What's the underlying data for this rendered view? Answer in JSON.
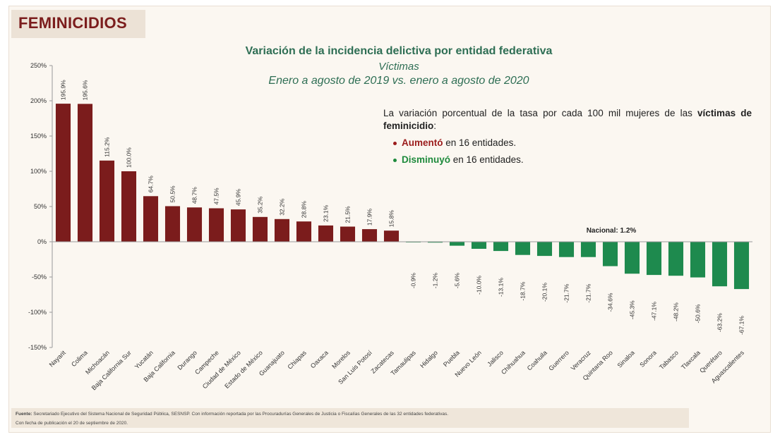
{
  "header": {
    "title": "FEMINICIDIOS"
  },
  "chart_data": {
    "type": "bar",
    "title": "Variación de la incidencia delictiva por entidad federativa",
    "subtitle": "Víctimas",
    "period": "Enero a agosto de 2019 vs. enero a agosto de 2020",
    "ylim": [
      -150,
      250
    ],
    "yticks": [
      250,
      200,
      150,
      100,
      50,
      0,
      -50,
      -100,
      -150
    ],
    "ytick_labels": [
      "250%",
      "200%",
      "150%",
      "100%",
      "50%",
      "0%",
      "-50%",
      "-100%",
      "-150%"
    ],
    "categories": [
      "Nayarit",
      "Colima",
      "Michoacán",
      "Baja California Sur",
      "Yucatán",
      "Baja California",
      "Durango",
      "Campeche",
      "Ciudad de México",
      "Estado de México",
      "Guanajuato",
      "Chiapas",
      "Oaxaca",
      "Morelos",
      "San Luis Potosí",
      "Zacatecas",
      "Tamaulipas",
      "Hidalgo",
      "Puebla",
      "Nuevo León",
      "Jalisco",
      "Chihuahua",
      "Coahuila",
      "Guerrero",
      "Veracruz",
      "Quintana Roo",
      "Sinaloa",
      "Sonora",
      "Tabasco",
      "Tlaxcala",
      "Querétaro",
      "Aguascalientes"
    ],
    "values": [
      195.9,
      195.6,
      115.2,
      100.0,
      64.7,
      50.5,
      48.7,
      47.5,
      45.9,
      35.2,
      32.2,
      28.8,
      23.1,
      21.5,
      17.9,
      15.8,
      -0.9,
      -1.2,
      -5.6,
      -10.0,
      -13.1,
      -18.7,
      -20.1,
      -21.7,
      -21.7,
      -34.6,
      -45.3,
      -47.1,
      -48.2,
      -50.6,
      -63.2,
      -67.1
    ],
    "value_labels": [
      "195.9%",
      "195.6%",
      "115.2%",
      "100.0%",
      "64.7%",
      "50.5%",
      "48.7%",
      "47.5%",
      "45.9%",
      "35.2%",
      "32.2%",
      "28.8%",
      "23.1%",
      "21.5%",
      "17.9%",
      "15.8%",
      "-0.9%",
      "-1.2%",
      "-5.6%",
      "-10.0%",
      "-13.1%",
      "-18.7%",
      "-20.1%",
      "-21.7%",
      "-21.7%",
      "-34.6%",
      "-45.3%",
      "-47.1%",
      "-48.2%",
      "-50.6%",
      "-63.2%",
      "-67.1%"
    ],
    "annotation": "Nacional: 1.2%",
    "colors": {
      "increase": "#7b1c1c",
      "decrease": "#1e8a4e",
      "axis": "#9a9a9a",
      "text": "#333333"
    }
  },
  "legend": {
    "description_prefix": "La variación porcentual de la tasa por cada 100 mil mujeres de las",
    "description_bold": "víctimas de feminicidio",
    "description_suffix": ":",
    "increase_word": "Aumentó",
    "increase_rest": " en 16 entidades.",
    "decrease_word": "Disminuyó",
    "decrease_rest": " en 16 entidades."
  },
  "footer": {
    "source_label": "Fuente:",
    "source_text": " Secretariado Ejecutivo del Sistema Nacional de Seguridad Pública, SESNSP. Con información reportada por las Procuradurías Generales de Justicia o Fiscalías Generales de las 32 entidades federativas.",
    "published": "Con fecha de publicación el 20 de septiembre de 2020."
  }
}
